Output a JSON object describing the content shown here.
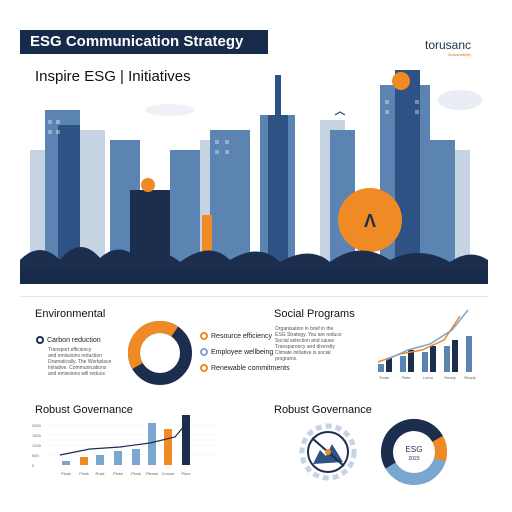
{
  "header": {
    "title": "ESG Communication Strategy",
    "subtitle": "Inspire ESG | Initiatives",
    "logo_name": "torusanc",
    "logo_tag": "Sustainability"
  },
  "hero": {
    "badge_text": "Λ"
  },
  "environmental": {
    "title": "Environmental",
    "item_label": "Carbon reduction",
    "body": [
      "Transport efficiency",
      "and emissions reduction",
      "Dramatically. The Workplace",
      "Initiative. Communications",
      "and emissions will reduce."
    ],
    "legend": [
      "Resource efficiency",
      "Employee wellbeing",
      "Renewable commitments"
    ],
    "colors": {
      "orange": "#f08a24",
      "navy": "#1c2e4d",
      "blue": "#7aa7cf"
    }
  },
  "social": {
    "title": "Social Programs",
    "body": [
      "Organisation in brief in the",
      "ESG Strategy. You are reduce",
      "Social selection and cause",
      "Transparency and diversity",
      "Climate initiative is social",
      "programs."
    ],
    "bar_labels": [
      "Trade",
      "Plate",
      "Lomo",
      "Ready",
      "Ready"
    ]
  },
  "governance_left": {
    "title": "Robust Governance",
    "y_ticks": [
      "2000",
      "1500",
      "1000",
      "500",
      "0"
    ],
    "x_labels": [
      "Plusk",
      "Plusk",
      "Rusk",
      "Plusk",
      "Plusk",
      "Pleuss",
      "Croose",
      "Piurs"
    ]
  },
  "governance_right": {
    "title": "Robust Governance",
    "donut_label": "ESG",
    "donut_sub": "2023"
  }
}
